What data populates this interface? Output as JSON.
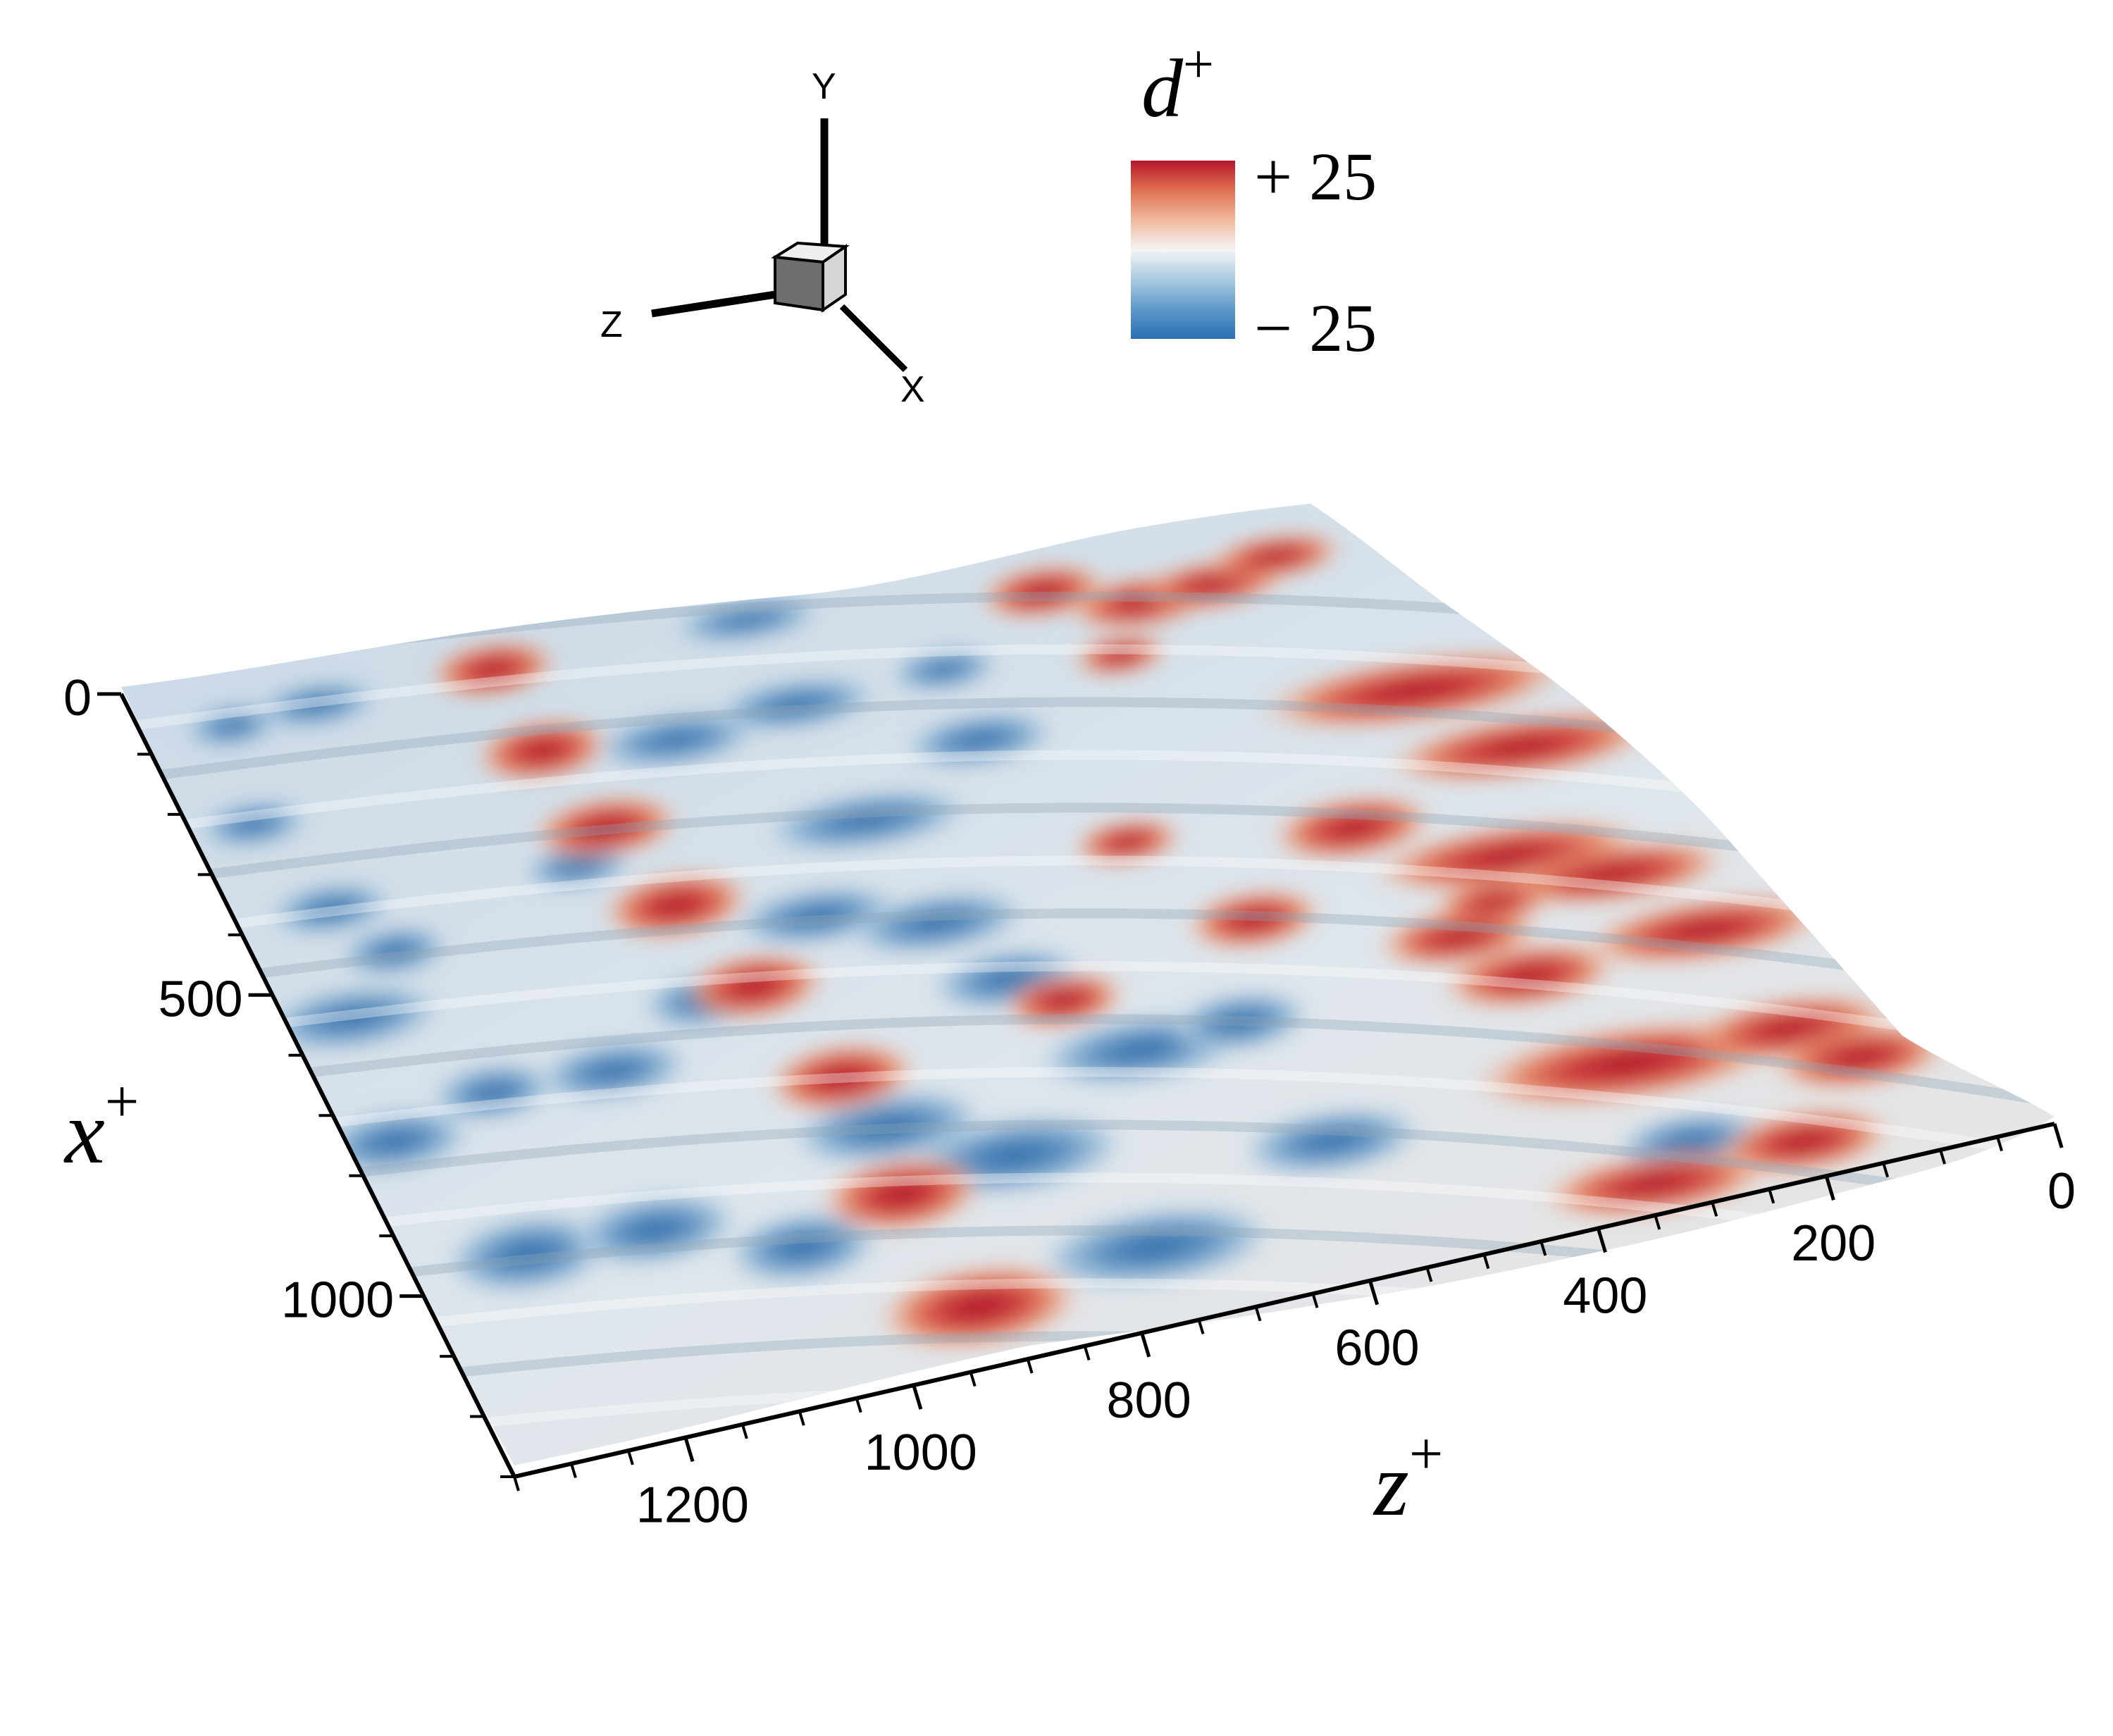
{
  "chart_data": {
    "type": "surface",
    "title": "",
    "colorbar": {
      "title_main": "d",
      "title_sup": "+",
      "max_label": "+ 25",
      "min_label": "− 25",
      "range": [
        -25,
        25
      ],
      "colormap": [
        "#2a6fb5",
        "#5b97c9",
        "#a8c9e0",
        "#f4f4f4",
        "#f1b89d",
        "#de6e4f",
        "#b5152b"
      ]
    },
    "orientation_axes": {
      "y_label": "Y",
      "z_label": "Z",
      "x_label": "X"
    },
    "x_axis": {
      "label_main": "x",
      "label_sup": "+",
      "ticks": [
        0,
        500,
        1000
      ],
      "tick_labels": [
        "0",
        "500",
        "1000"
      ],
      "range": [
        0,
        1300
      ]
    },
    "z_axis": {
      "label_main": "z",
      "label_sup": "+",
      "ticks": [
        0,
        200,
        400,
        600,
        800,
        1000,
        1200
      ],
      "tick_labels": [
        "0",
        "200",
        "400",
        "600",
        "800",
        "1000",
        "1200"
      ],
      "range": [
        0,
        1350
      ]
    }
  }
}
